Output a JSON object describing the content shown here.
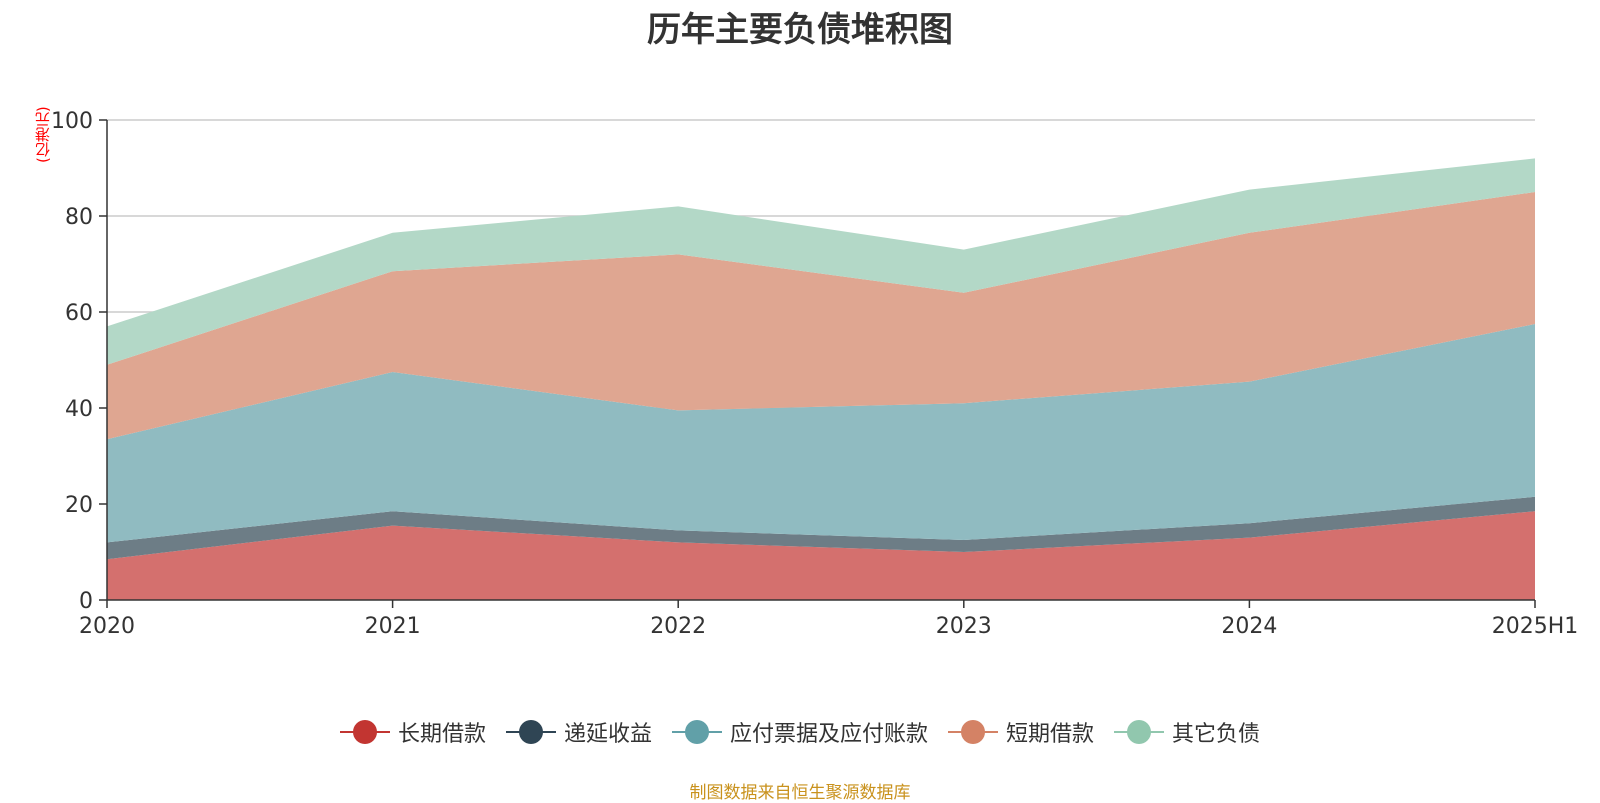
{
  "chart_data": {
    "type": "area",
    "stacked": true,
    "title": "历年主要负债堆积图",
    "y_unit": "(亿港元)",
    "categories": [
      "2020",
      "2021",
      "2022",
      "2023",
      "2024",
      "2025H1"
    ],
    "ylim": [
      0,
      100
    ],
    "yticks": [
      0,
      20,
      40,
      60,
      80,
      100
    ],
    "grid": true,
    "legend_position": "bottom",
    "series": [
      {
        "name": "长期借款",
        "color": "#c23531",
        "area_color": "#d4706e",
        "values": [
          8.5,
          15.5,
          12.0,
          10.0,
          13.0,
          18.5
        ]
      },
      {
        "name": "递延收益",
        "color": "#2f4554",
        "area_color": "#6d7d86",
        "values": [
          3.5,
          3.0,
          2.5,
          2.5,
          3.0,
          3.0
        ]
      },
      {
        "name": "应付票据及应付账款",
        "color": "#61a0a8",
        "area_color": "#90bbc1",
        "values": [
          21.5,
          29.0,
          25.0,
          28.5,
          29.5,
          36.0
        ]
      },
      {
        "name": "短期借款",
        "color": "#d48265",
        "area_color": "#dfa691",
        "values": [
          15.5,
          21.0,
          32.5,
          23.0,
          31.0,
          27.5
        ]
      },
      {
        "name": "其它负债",
        "color": "#91c7ae",
        "area_color": "#b3d8c7",
        "values": [
          8.0,
          8.0,
          10.0,
          9.0,
          9.0,
          7.0
        ]
      }
    ]
  },
  "source_note": "制图数据来自恒生聚源数据库"
}
